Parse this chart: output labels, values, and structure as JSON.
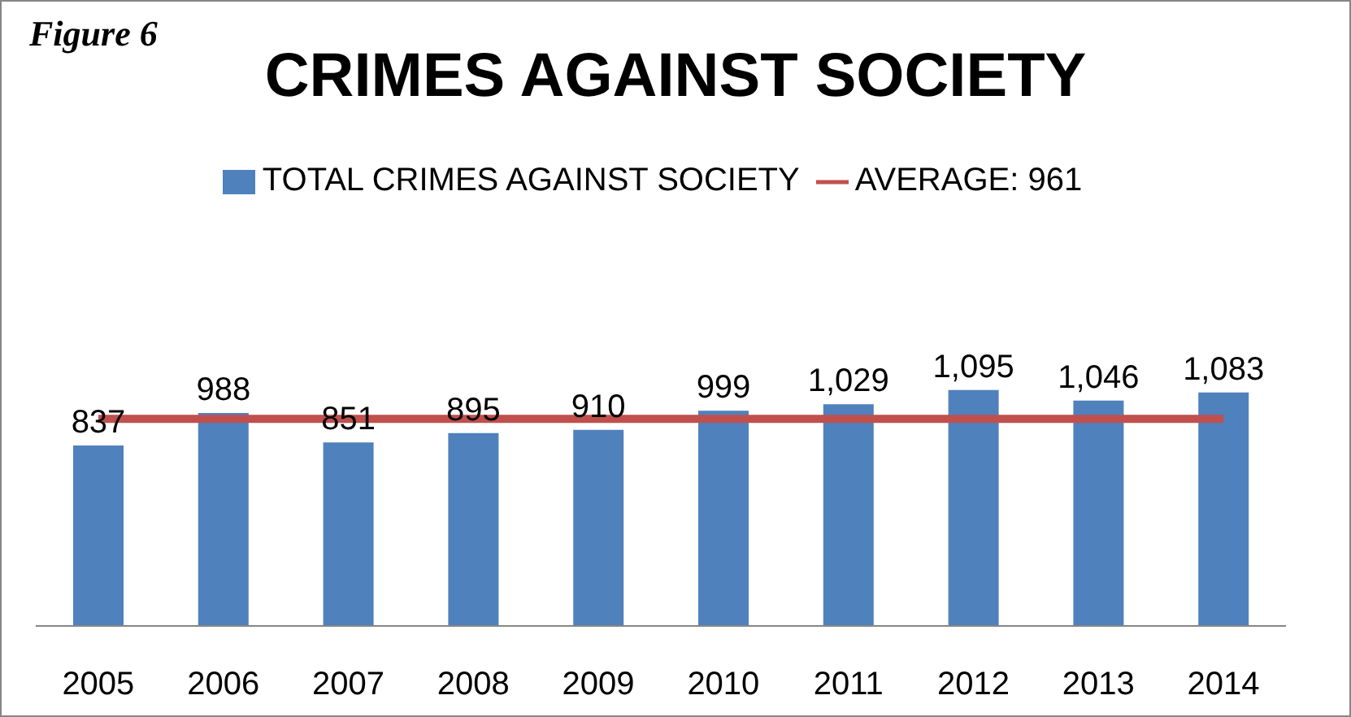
{
  "chart_data": {
    "type": "bar",
    "title": "CRIMES AGAINST SOCIETY",
    "annotations": [
      "Figure 6"
    ],
    "categories": [
      "2005",
      "2006",
      "2007",
      "2008",
      "2009",
      "2010",
      "2011",
      "2012",
      "2013",
      "2014"
    ],
    "series": [
      {
        "name": "TOTAL CRIMES  AGAINST SOCIETY",
        "color": "#4f81bd",
        "values": [
          837,
          988,
          851,
          895,
          910,
          999,
          1029,
          1095,
          1046,
          1083
        ],
        "value_labels": [
          "837",
          "988",
          "851",
          "895",
          "910",
          "999",
          "1,029",
          "1,095",
          "1,046",
          "1,083"
        ]
      },
      {
        "name": "AVERAGE: 961",
        "type": "line",
        "color": "#c0504d",
        "values": [
          961,
          961,
          961,
          961,
          961,
          961,
          961,
          961,
          961,
          961
        ]
      }
    ],
    "legend": "top",
    "grid": false,
    "marker": "none"
  }
}
